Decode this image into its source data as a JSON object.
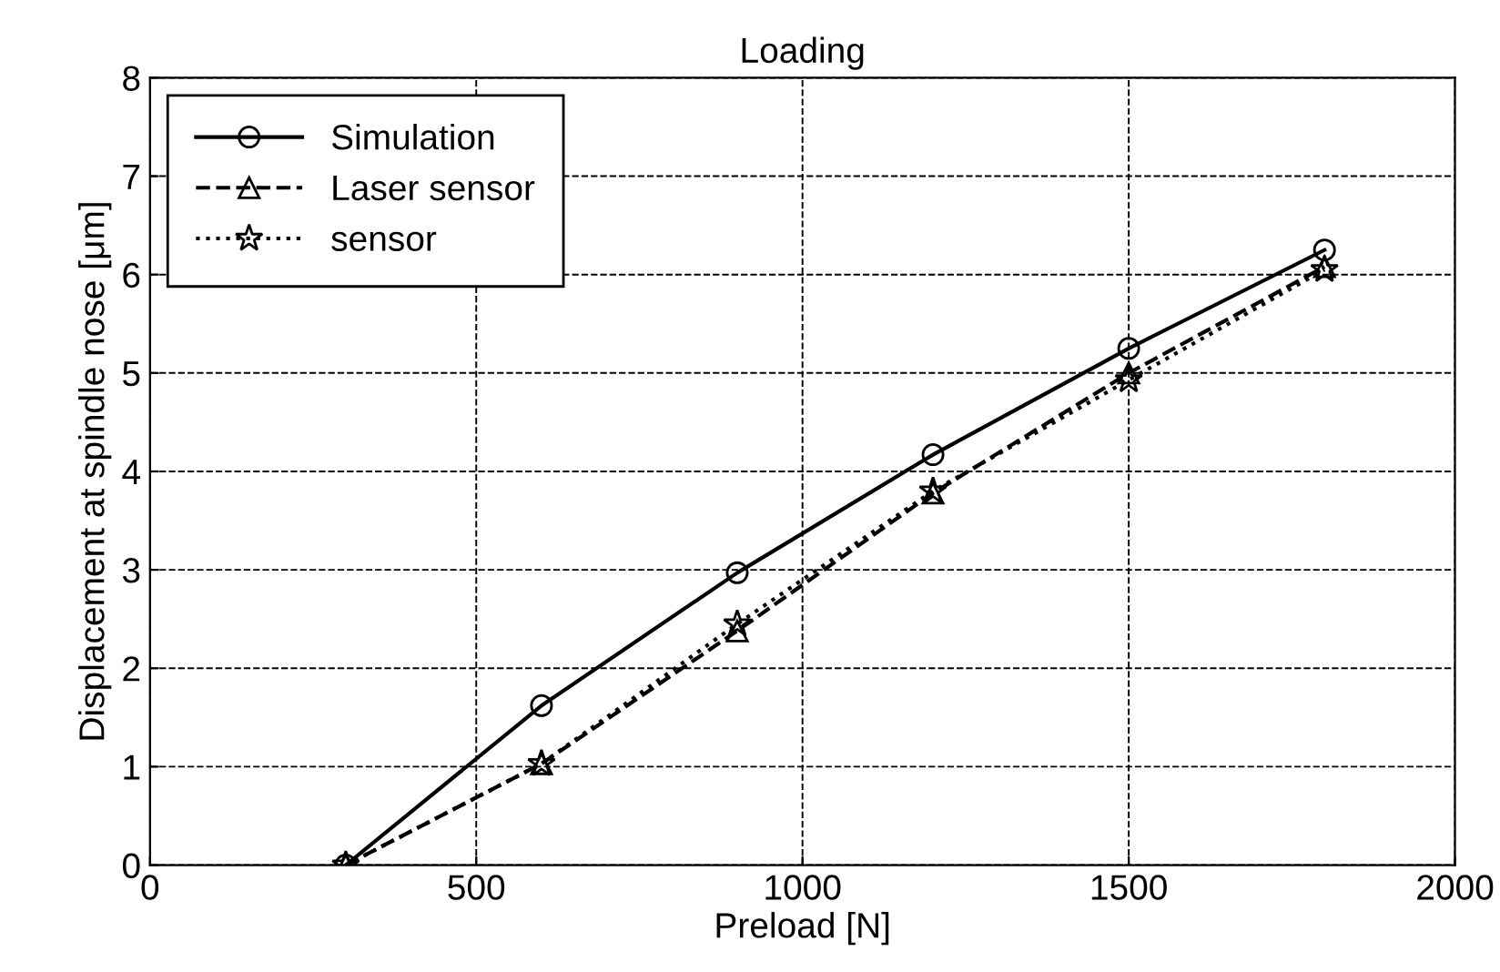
{
  "chart_data": {
    "type": "line",
    "title": "Loading",
    "xlabel": "Preload [N]",
    "ylabel": "Displacement at spindle nose [μm]",
    "x": [
      300,
      600,
      900,
      1200,
      1500,
      1800
    ],
    "series": [
      {
        "name": "Simulation",
        "color": "#000000",
        "marker": "circle",
        "line_style": "solid",
        "values": [
          0,
          1.62,
          2.97,
          4.17,
          5.25,
          6.25
        ]
      },
      {
        "name": "Laser sensor",
        "color": "#000000",
        "marker": "triangle",
        "line_style": "dashed",
        "values": [
          0,
          1.03,
          2.38,
          3.78,
          5.0,
          6.08
        ]
      },
      {
        "name": "sensor",
        "color": "#000000",
        "marker": "star",
        "line_style": "dotted",
        "values": [
          0,
          1.03,
          2.45,
          3.8,
          4.93,
          6.05
        ]
      }
    ],
    "xlim": [
      0,
      2000
    ],
    "xticks": [
      0,
      500,
      1000,
      1500,
      2000
    ],
    "ylim": [
      0,
      8
    ],
    "yticks": [
      0,
      1,
      2,
      3,
      4,
      5,
      6,
      7,
      8
    ],
    "grid": true,
    "legend": "top left"
  }
}
